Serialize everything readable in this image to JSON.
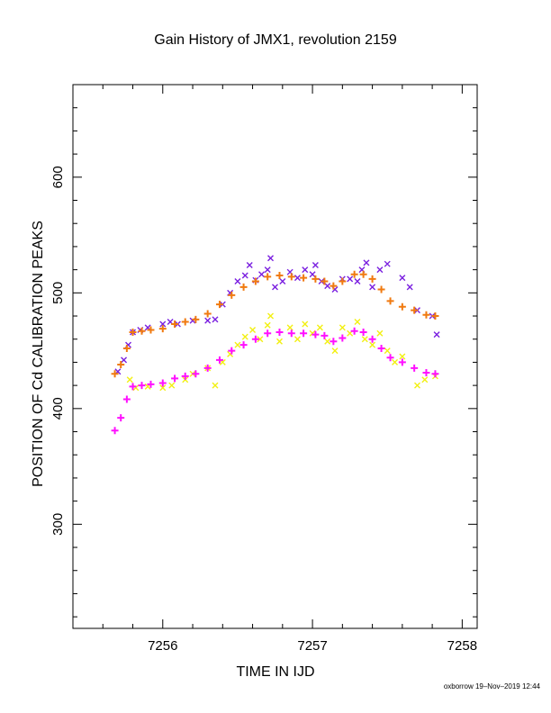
{
  "chart_data": {
    "type": "scatter",
    "title": "Gain History of JMX1, revolution 2159",
    "xlabel": "TIME IN IJD",
    "ylabel": "POSITION OF Cd CALIBRATION PEAKS",
    "xlim": [
      7255.4,
      7258.1
    ],
    "ylim": [
      210,
      680
    ],
    "x_ticks": [
      7256,
      7257,
      7258
    ],
    "y_ticks": [
      300,
      400,
      500,
      600
    ],
    "grid": false,
    "series": [
      {
        "color": "#7a1fe0",
        "marker": "x",
        "points": [
          [
            7255.7,
            432
          ],
          [
            7255.74,
            442
          ],
          [
            7255.77,
            455
          ],
          [
            7255.8,
            466
          ],
          [
            7255.85,
            468
          ],
          [
            7255.9,
            470
          ],
          [
            7256.0,
            473
          ],
          [
            7256.05,
            475
          ],
          [
            7256.1,
            473
          ],
          [
            7256.2,
            476
          ],
          [
            7256.3,
            476
          ],
          [
            7256.35,
            477
          ],
          [
            7256.4,
            490
          ],
          [
            7256.45,
            500
          ],
          [
            7256.5,
            510
          ],
          [
            7256.55,
            515
          ],
          [
            7256.58,
            524
          ],
          [
            7256.62,
            511
          ],
          [
            7256.66,
            516
          ],
          [
            7256.7,
            520
          ],
          [
            7256.72,
            530
          ],
          [
            7256.75,
            505
          ],
          [
            7256.8,
            510
          ],
          [
            7256.85,
            518
          ],
          [
            7256.9,
            513
          ],
          [
            7256.95,
            520
          ],
          [
            7257.0,
            516
          ],
          [
            7257.02,
            524
          ],
          [
            7257.06,
            510
          ],
          [
            7257.1,
            506
          ],
          [
            7257.15,
            503
          ],
          [
            7257.2,
            512
          ],
          [
            7257.25,
            512
          ],
          [
            7257.3,
            510
          ],
          [
            7257.33,
            520
          ],
          [
            7257.36,
            526
          ],
          [
            7257.4,
            505
          ],
          [
            7257.45,
            520
          ],
          [
            7257.5,
            525
          ],
          [
            7257.6,
            513
          ],
          [
            7257.65,
            505
          ],
          [
            7257.7,
            485
          ],
          [
            7257.8,
            480
          ],
          [
            7257.83,
            464
          ]
        ]
      },
      {
        "color": "#f07a10",
        "marker": "+",
        "points": [
          [
            7255.68,
            430
          ],
          [
            7255.72,
            438
          ],
          [
            7255.76,
            452
          ],
          [
            7255.8,
            466
          ],
          [
            7255.86,
            467
          ],
          [
            7255.92,
            468
          ],
          [
            7256.0,
            469
          ],
          [
            7256.08,
            473
          ],
          [
            7256.15,
            475
          ],
          [
            7256.22,
            477
          ],
          [
            7256.3,
            482
          ],
          [
            7256.38,
            490
          ],
          [
            7256.46,
            498
          ],
          [
            7256.54,
            505
          ],
          [
            7256.62,
            510
          ],
          [
            7256.7,
            514
          ],
          [
            7256.78,
            515
          ],
          [
            7256.86,
            514
          ],
          [
            7256.94,
            513
          ],
          [
            7257.02,
            512
          ],
          [
            7257.08,
            510
          ],
          [
            7257.14,
            506
          ],
          [
            7257.2,
            510
          ],
          [
            7257.28,
            516
          ],
          [
            7257.34,
            516
          ],
          [
            7257.4,
            512
          ],
          [
            7257.46,
            503
          ],
          [
            7257.52,
            493
          ],
          [
            7257.6,
            488
          ],
          [
            7257.68,
            485
          ],
          [
            7257.76,
            481
          ],
          [
            7257.82,
            480
          ]
        ]
      },
      {
        "color": "#f2f012",
        "marker": "x",
        "points": [
          [
            7255.78,
            425
          ],
          [
            7255.82,
            418
          ],
          [
            7255.9,
            419
          ],
          [
            7256.0,
            418
          ],
          [
            7256.06,
            420
          ],
          [
            7256.15,
            425
          ],
          [
            7256.2,
            430
          ],
          [
            7256.3,
            435
          ],
          [
            7256.35,
            420
          ],
          [
            7256.4,
            440
          ],
          [
            7256.45,
            447
          ],
          [
            7256.5,
            455
          ],
          [
            7256.55,
            462
          ],
          [
            7256.6,
            468
          ],
          [
            7256.65,
            460
          ],
          [
            7256.7,
            472
          ],
          [
            7256.72,
            480
          ],
          [
            7256.78,
            458
          ],
          [
            7256.85,
            470
          ],
          [
            7256.9,
            460
          ],
          [
            7256.95,
            473
          ],
          [
            7257.0,
            465
          ],
          [
            7257.05,
            470
          ],
          [
            7257.1,
            458
          ],
          [
            7257.15,
            450
          ],
          [
            7257.2,
            470
          ],
          [
            7257.25,
            465
          ],
          [
            7257.3,
            475
          ],
          [
            7257.35,
            460
          ],
          [
            7257.4,
            455
          ],
          [
            7257.45,
            465
          ],
          [
            7257.5,
            450
          ],
          [
            7257.55,
            440
          ],
          [
            7257.6,
            445
          ],
          [
            7257.7,
            420
          ],
          [
            7257.75,
            425
          ],
          [
            7257.82,
            428
          ]
        ]
      },
      {
        "color": "#ff10ff",
        "marker": "+",
        "points": [
          [
            7255.68,
            381
          ],
          [
            7255.72,
            392
          ],
          [
            7255.76,
            408
          ],
          [
            7255.8,
            419
          ],
          [
            7255.86,
            420
          ],
          [
            7255.92,
            421
          ],
          [
            7256.0,
            422
          ],
          [
            7256.08,
            426
          ],
          [
            7256.15,
            428
          ],
          [
            7256.22,
            430
          ],
          [
            7256.3,
            435
          ],
          [
            7256.38,
            442
          ],
          [
            7256.46,
            450
          ],
          [
            7256.54,
            455
          ],
          [
            7256.62,
            460
          ],
          [
            7256.7,
            465
          ],
          [
            7256.78,
            466
          ],
          [
            7256.86,
            465
          ],
          [
            7256.94,
            465
          ],
          [
            7257.02,
            464
          ],
          [
            7257.08,
            463
          ],
          [
            7257.14,
            458
          ],
          [
            7257.2,
            461
          ],
          [
            7257.28,
            467
          ],
          [
            7257.34,
            466
          ],
          [
            7257.4,
            460
          ],
          [
            7257.46,
            452
          ],
          [
            7257.52,
            444
          ],
          [
            7257.6,
            440
          ],
          [
            7257.68,
            435
          ],
          [
            7257.76,
            431
          ],
          [
            7257.82,
            430
          ]
        ]
      }
    ]
  },
  "footer": "oxborrow 19–Nov–2019 12:44"
}
